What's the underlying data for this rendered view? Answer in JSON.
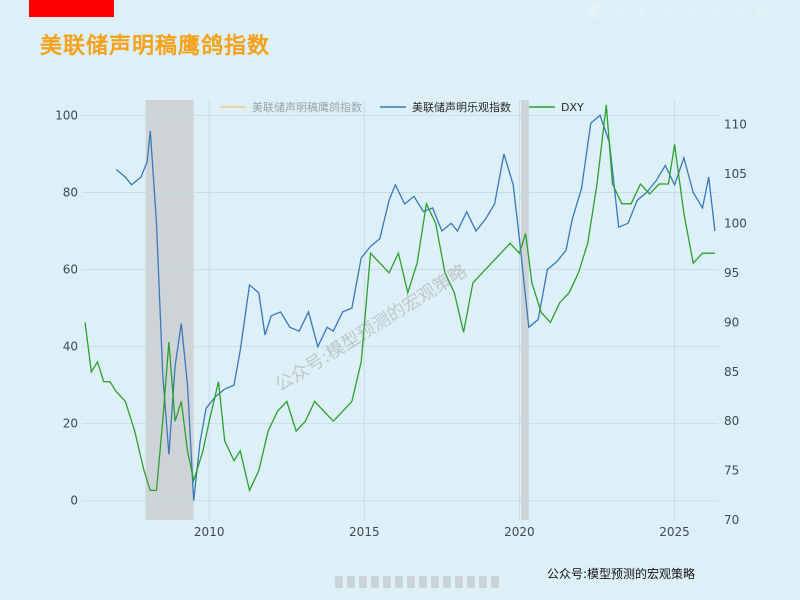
{
  "header": {
    "title": "美联储声明稿鹰鸽指数"
  },
  "footer": {
    "credit": "公众号:模型预测的宏观策略"
  },
  "watermark": "公众号:模型预测的宏观策略",
  "modebar": [
    {
      "name": "camera-icon",
      "glyph": "◙"
    },
    {
      "name": "zoom-icon",
      "glyph": "⊕"
    },
    {
      "name": "pan-icon",
      "glyph": "✚"
    },
    {
      "name": "zoom-in-icon",
      "glyph": "⊞"
    },
    {
      "name": "zoom-out-icon",
      "glyph": "⊟"
    },
    {
      "name": "autoscale-icon",
      "glyph": "✕"
    },
    {
      "name": "home-icon",
      "glyph": "⌂"
    },
    {
      "name": "plotly-logo-icon",
      "glyph": "▥"
    }
  ],
  "colors": {
    "hawk_dove": "#f5c77e",
    "optimism": "#3a78b8",
    "dxy": "#2ca02c",
    "shade": "#cdd3d7",
    "grid": "#c6dde8"
  },
  "chart_data": {
    "type": "line",
    "title": "",
    "legend": {
      "placement": "top",
      "entries": [
        "美联储声明稿鹰鸽指数",
        "美联储声明乐观指数",
        "DXY"
      ]
    },
    "xlim": [
      2005.9,
      2026.4
    ],
    "xticks": [
      2010,
      2015,
      2020,
      2025
    ],
    "y_left": {
      "lim": [
        -5,
        104
      ],
      "ticks": [
        0,
        20,
        40,
        60,
        80,
        100
      ]
    },
    "y_right": {
      "lim": [
        70,
        112.5
      ],
      "ticks": [
        70,
        75,
        80,
        85,
        90,
        95,
        100,
        105,
        110
      ]
    },
    "shaded_periods": [
      [
        2007.95,
        2009.5
      ],
      [
        2020.05,
        2020.3
      ]
    ],
    "series": [
      {
        "name": "美联储声明稿鹰鸽指数",
        "axis": "left",
        "x": [],
        "y": []
      },
      {
        "name": "美联储声明乐观指数",
        "axis": "left",
        "x": [
          2007.0,
          2007.3,
          2007.5,
          2007.8,
          2008.0,
          2008.1,
          2008.3,
          2008.5,
          2008.7,
          2008.9,
          2009.1,
          2009.3,
          2009.5,
          2009.7,
          2009.9,
          2010.2,
          2010.5,
          2010.8,
          2011.0,
          2011.3,
          2011.6,
          2011.8,
          2012.0,
          2012.3,
          2012.6,
          2012.9,
          2013.2,
          2013.5,
          2013.8,
          2014.0,
          2014.3,
          2014.6,
          2014.9,
          2015.2,
          2015.5,
          2015.8,
          2016.0,
          2016.3,
          2016.6,
          2016.9,
          2017.2,
          2017.5,
          2017.8,
          2018.0,
          2018.3,
          2018.6,
          2018.9,
          2019.2,
          2019.5,
          2019.8,
          2020.0,
          2020.3,
          2020.6,
          2020.9,
          2021.2,
          2021.5,
          2021.7,
          2022.0,
          2022.3,
          2022.6,
          2022.9,
          2023.2,
          2023.5,
          2023.8,
          2024.1,
          2024.4,
          2024.7,
          2025.0,
          2025.3,
          2025.6,
          2025.9,
          2026.1,
          2026.3
        ],
        "y": [
          86,
          84,
          82,
          84,
          88,
          96,
          72,
          33,
          12,
          35,
          46,
          30,
          0,
          15,
          24,
          27,
          29,
          30,
          39,
          56,
          54,
          43,
          48,
          49,
          45,
          44,
          49,
          40,
          45,
          44,
          49,
          50,
          63,
          66,
          68,
          78,
          82,
          77,
          79,
          75,
          76,
          70,
          72,
          70,
          75,
          70,
          73,
          77,
          90,
          82,
          68,
          45,
          47,
          60,
          62,
          65,
          73,
          81,
          98,
          100,
          93,
          71,
          72,
          78,
          80,
          83,
          87,
          82,
          89,
          80,
          76,
          84,
          70
        ]
      },
      {
        "name": "DXY",
        "axis": "right",
        "x": [
          2006.0,
          2006.2,
          2006.4,
          2006.6,
          2006.8,
          2007.0,
          2007.3,
          2007.6,
          2007.9,
          2008.1,
          2008.3,
          2008.5,
          2008.7,
          2008.9,
          2009.1,
          2009.3,
          2009.5,
          2009.8,
          2010.0,
          2010.3,
          2010.5,
          2010.8,
          2011.0,
          2011.3,
          2011.6,
          2011.9,
          2012.2,
          2012.5,
          2012.8,
          2013.1,
          2013.4,
          2013.7,
          2014.0,
          2014.3,
          2014.6,
          2014.9,
          2015.2,
          2015.5,
          2015.8,
          2016.1,
          2016.4,
          2016.7,
          2017.0,
          2017.3,
          2017.6,
          2017.9,
          2018.2,
          2018.5,
          2018.8,
          2019.1,
          2019.4,
          2019.7,
          2020.0,
          2020.2,
          2020.4,
          2020.7,
          2021.0,
          2021.3,
          2021.6,
          2021.9,
          2022.2,
          2022.5,
          2022.8,
          2023.0,
          2023.3,
          2023.6,
          2023.9,
          2024.2,
          2024.5,
          2024.8,
          2025.0,
          2025.3,
          2025.6,
          2025.9,
          2026.3
        ],
        "y": [
          90,
          85,
          86,
          84,
          84,
          83,
          82,
          79,
          75,
          73,
          73,
          80,
          88,
          80,
          82,
          77,
          74,
          77,
          80,
          84,
          78,
          76,
          77,
          73,
          75,
          79,
          81,
          82,
          79,
          80,
          82,
          81,
          80,
          81,
          82,
          86,
          97,
          96,
          95,
          97,
          93,
          96,
          102,
          100,
          95,
          93,
          89,
          94,
          95,
          96,
          97,
          98,
          97,
          99,
          94,
          91,
          90,
          92,
          93,
          95,
          98,
          104,
          112,
          104,
          102,
          102,
          104,
          103,
          104,
          104,
          108,
          101,
          96,
          97,
          97
        ]
      }
    ]
  }
}
